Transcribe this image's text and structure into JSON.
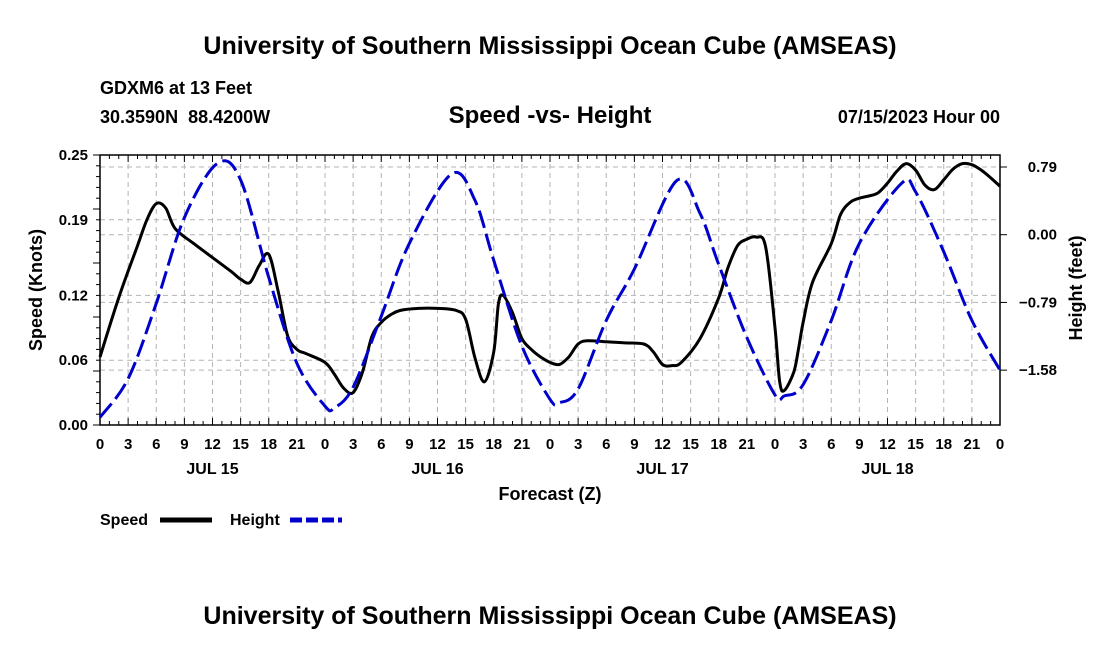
{
  "page_title": "University of Southern Mississippi Ocean Cube (AMSEAS)",
  "footer_title": "University of Southern Mississippi Ocean Cube (AMSEAS)",
  "station": "GDXM6 at 13 Feet",
  "coords": "30.3590N  88.4200W",
  "timestamp": "07/15/2023 Hour 00",
  "colors": {
    "speed": "#000000",
    "height": "#0000cc",
    "grid": "#b4b4b4"
  },
  "chart_data": {
    "type": "line",
    "title": "Speed -vs- Height",
    "xlabel": "Forecast (Z)",
    "ylabel": "Speed (Knots)",
    "y2label": "Height (feet)",
    "xlim": [
      0,
      96
    ],
    "ylim": [
      0,
      0.25
    ],
    "y2lim": [
      -2.22,
      0.93
    ],
    "xtick_labels": [
      "0",
      "3",
      "6",
      "9",
      "12",
      "15",
      "18",
      "21",
      "0",
      "3",
      "6",
      "9",
      "12",
      "15",
      "18",
      "21",
      "0",
      "3",
      "6",
      "9",
      "12",
      "15",
      "18",
      "21",
      "0",
      "3",
      "6",
      "9",
      "12",
      "15",
      "18",
      "21",
      "0"
    ],
    "day_labels": [
      "JUL 15",
      "JUL 16",
      "JUL 17",
      "JUL 18"
    ],
    "day_label_hours": [
      12,
      36,
      60,
      84
    ],
    "yticks": [
      0.0,
      0.06,
      0.12,
      0.19,
      0.25
    ],
    "ytick_labels": [
      "0.00",
      "0.06",
      "0.12",
      "0.19",
      "0.25"
    ],
    "y2ticks": [
      0.79,
      0.0,
      -0.79,
      -1.58
    ],
    "y2tick_labels": [
      "0.79",
      "0.00",
      "−0.79",
      "−1.58"
    ],
    "grid": true,
    "legend": {
      "position": "bottom-left",
      "speed_label": "Speed",
      "height_label": "Height"
    },
    "series": [
      {
        "name": "Speed",
        "axis": "left",
        "style": "solid",
        "x": [
          0,
          2,
          4,
          5,
          6,
          7,
          8,
          10,
          12,
          14,
          15,
          16,
          17,
          18,
          19,
          20,
          21,
          22,
          24,
          25,
          26,
          27,
          28,
          29,
          30,
          31,
          32,
          34,
          36,
          38,
          39,
          40,
          41,
          42,
          42.5,
          43,
          44,
          45,
          46,
          47,
          48,
          49,
          50,
          51,
          52,
          54,
          56,
          58,
          59,
          60,
          61,
          62,
          64,
          66,
          67,
          68,
          69,
          70,
          71,
          72,
          72.5,
          73,
          74,
          74.5,
          75,
          76,
          78,
          79,
          80,
          81,
          82,
          83,
          84,
          85,
          86,
          87,
          88,
          89,
          90,
          91,
          92,
          93,
          94,
          95,
          96
        ],
        "values": [
          0.063,
          0.118,
          0.166,
          0.19,
          0.205,
          0.201,
          0.182,
          0.168,
          0.155,
          0.142,
          0.135,
          0.132,
          0.148,
          0.158,
          0.124,
          0.083,
          0.07,
          0.066,
          0.058,
          0.047,
          0.034,
          0.03,
          0.049,
          0.082,
          0.095,
          0.102,
          0.106,
          0.108,
          0.108,
          0.106,
          0.098,
          0.062,
          0.04,
          0.068,
          0.112,
          0.12,
          0.104,
          0.08,
          0.07,
          0.063,
          0.058,
          0.056,
          0.063,
          0.075,
          0.078,
          0.077,
          0.076,
          0.075,
          0.068,
          0.056,
          0.055,
          0.058,
          0.08,
          0.118,
          0.146,
          0.166,
          0.172,
          0.174,
          0.165,
          0.09,
          0.04,
          0.032,
          0.049,
          0.07,
          0.095,
          0.132,
          0.168,
          0.195,
          0.206,
          0.21,
          0.212,
          0.215,
          0.224,
          0.235,
          0.242,
          0.236,
          0.222,
          0.218,
          0.227,
          0.237,
          0.242,
          0.241,
          0.236,
          0.229,
          0.221
        ]
      },
      {
        "name": "Height",
        "axis": "right",
        "style": "dashed",
        "x": [
          0,
          3,
          6,
          9,
          12.5,
          15,
          18,
          21,
          24,
          25,
          27,
          30,
          33,
          37.5,
          40,
          42,
          45,
          48,
          49,
          51,
          54,
          57,
          61.5,
          64,
          66,
          69,
          72,
          73,
          75,
          78,
          81,
          85.5,
          87,
          90,
          93,
          96
        ],
        "values": [
          -2.13,
          -1.68,
          -0.8,
          0.2,
          0.83,
          0.64,
          -0.5,
          -1.5,
          -2.0,
          -2.02,
          -1.78,
          -0.95,
          -0.1,
          0.71,
          0.4,
          -0.3,
          -1.3,
          -1.92,
          -1.96,
          -1.8,
          -1.0,
          -0.4,
          0.63,
          0.25,
          -0.35,
          -1.2,
          -1.87,
          -1.88,
          -1.75,
          -1.0,
          -0.1,
          0.6,
          0.5,
          -0.2,
          -1.0,
          -1.58
        ]
      }
    ]
  }
}
